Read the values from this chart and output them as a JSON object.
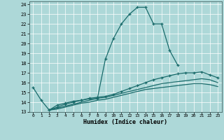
{
  "xlabel": "Humidex (Indice chaleur)",
  "bg_color": "#add8d8",
  "grid_color": "#ffffff",
  "line_color": "#1a6b6b",
  "xlim": [
    -0.5,
    23.5
  ],
  "ylim": [
    13,
    24.3
  ],
  "xticks": [
    0,
    1,
    2,
    3,
    4,
    5,
    6,
    7,
    8,
    9,
    10,
    11,
    12,
    13,
    14,
    15,
    16,
    17,
    18,
    19,
    20,
    21,
    22,
    23
  ],
  "yticks": [
    13,
    14,
    15,
    16,
    17,
    18,
    19,
    20,
    21,
    22,
    23,
    24
  ],
  "line1_x": [
    0,
    1,
    2,
    3,
    4,
    5,
    6,
    7,
    8,
    9,
    10,
    11,
    12,
    13,
    14,
    15,
    16,
    17,
    18
  ],
  "line1_y": [
    15.5,
    14.2,
    13.2,
    13.7,
    13.9,
    14.1,
    14.2,
    14.35,
    14.35,
    18.4,
    20.5,
    22.0,
    23.0,
    23.7,
    23.7,
    22.0,
    22.0,
    19.3,
    17.8
  ],
  "line2_x": [
    2,
    3,
    4,
    5,
    6,
    7,
    8,
    9,
    10,
    11,
    12,
    13,
    14,
    15,
    16,
    17,
    18,
    19,
    20,
    21,
    22,
    23
  ],
  "line2_y": [
    13.2,
    13.5,
    13.8,
    14.0,
    14.2,
    14.4,
    14.5,
    14.6,
    14.8,
    15.1,
    15.4,
    15.7,
    16.0,
    16.3,
    16.5,
    16.7,
    16.9,
    17.0,
    17.0,
    17.1,
    16.8,
    16.5
  ],
  "line3_x": [
    2,
    3,
    4,
    5,
    6,
    7,
    8,
    9,
    10,
    11,
    12,
    13,
    14,
    15,
    16,
    17,
    18,
    19,
    20,
    21,
    22,
    23
  ],
  "line3_y": [
    13.2,
    13.4,
    13.6,
    13.8,
    14.0,
    14.2,
    14.4,
    14.5,
    14.7,
    14.9,
    15.1,
    15.3,
    15.5,
    15.7,
    15.9,
    16.0,
    16.1,
    16.2,
    16.3,
    16.4,
    16.3,
    16.0
  ],
  "line4_x": [
    2,
    3,
    4,
    5,
    6,
    7,
    8,
    9,
    10,
    11,
    12,
    13,
    14,
    15,
    16,
    17,
    18,
    19,
    20,
    21,
    22,
    23
  ],
  "line4_y": [
    13.2,
    13.3,
    13.5,
    13.7,
    13.9,
    14.0,
    14.2,
    14.3,
    14.5,
    14.7,
    14.9,
    15.1,
    15.3,
    15.4,
    15.5,
    15.6,
    15.7,
    15.8,
    15.9,
    15.9,
    15.8,
    15.6
  ]
}
